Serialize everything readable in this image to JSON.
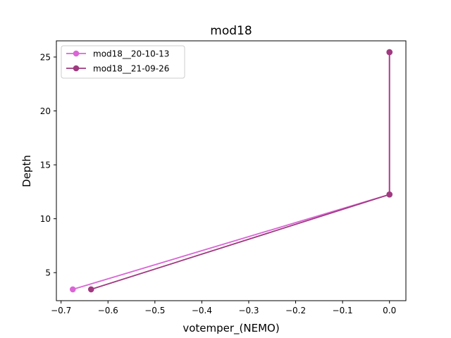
{
  "chart_data": {
    "type": "line",
    "title": "mod18",
    "xlabel": "votemper_(NEMO)",
    "ylabel": "Depth",
    "xlim": [
      -0.71,
      0.035
    ],
    "ylim": [
      2.4,
      26.5
    ],
    "xticks": [
      -0.7,
      -0.6,
      -0.5,
      -0.4,
      -0.3,
      -0.2,
      -0.1,
      0.0
    ],
    "xtick_labels": [
      "−0.7",
      "−0.6",
      "−0.5",
      "−0.4",
      "−0.3",
      "−0.2",
      "−0.1",
      "0.0"
    ],
    "yticks": [
      5,
      10,
      15,
      20,
      25
    ],
    "ytick_labels": [
      "5",
      "10",
      "15",
      "20",
      "25"
    ],
    "grid": false,
    "legend_position": "top-left",
    "series": [
      {
        "name": "mod18__20-10-13",
        "color": "#da65d6",
        "x": [
          -0.675,
          0.0,
          0.0
        ],
        "y": [
          3.45,
          12.25,
          25.45
        ]
      },
      {
        "name": "mod18__21-09-26",
        "color": "#a03a80",
        "x": [
          -0.636,
          0.0,
          0.0
        ],
        "y": [
          3.45,
          12.25,
          25.45
        ]
      }
    ]
  }
}
